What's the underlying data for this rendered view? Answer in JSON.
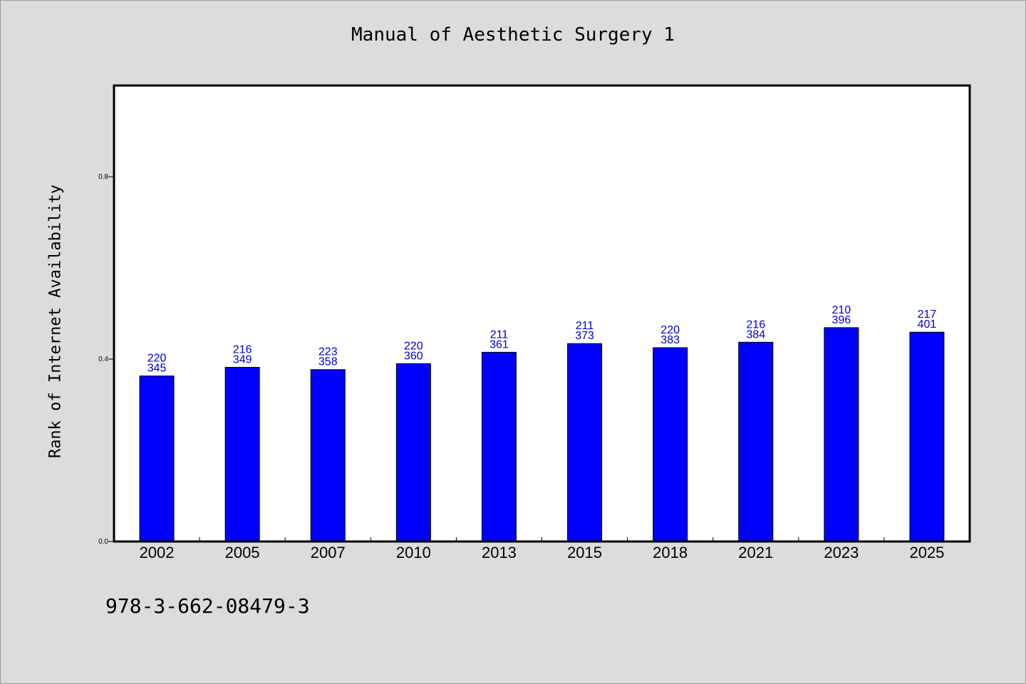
{
  "title": "Manual of Aesthetic Surgery 1",
  "isbn": "978-3-662-08479-3",
  "chart_data": {
    "type": "bar",
    "title": "Manual of Aesthetic Surgery 1",
    "xlabel": "",
    "ylabel": "Rank of Internet Availability",
    "categories": [
      "2002",
      "2005",
      "2007",
      "2010",
      "2013",
      "2015",
      "2018",
      "2021",
      "2023",
      "2025"
    ],
    "values": [
      0.363,
      0.382,
      0.377,
      0.39,
      0.415,
      0.434,
      0.425,
      0.437,
      0.469,
      0.459
    ],
    "labels_top": [
      "220",
      "216",
      "223",
      "220",
      "211",
      "211",
      "220",
      "216",
      "210",
      "217"
    ],
    "labels_bottom": [
      "345",
      "349",
      "358",
      "360",
      "361",
      "373",
      "383",
      "384",
      "396",
      "401"
    ],
    "ylim": [
      0,
      1.0
    ],
    "yticks": [
      "0.0",
      "0.4",
      "0.8"
    ],
    "ytick_values": [
      0.0,
      0.4,
      0.8
    ],
    "grid": false,
    "colors": {
      "bar": "#0000ff",
      "label": "#0000cc",
      "background": "#dcdcdc",
      "plot": "#ffffff"
    }
  }
}
